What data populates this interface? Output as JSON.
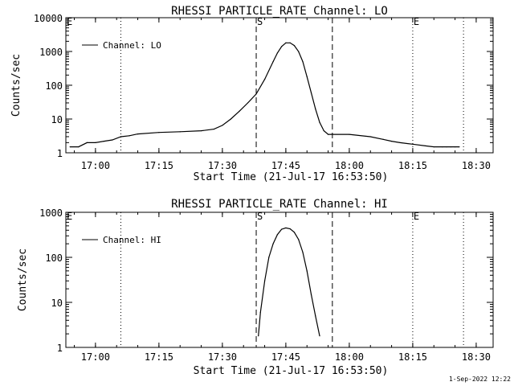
{
  "footer": {
    "date": "1-Sep-2022 12:22"
  },
  "chart_data": [
    {
      "type": "line",
      "title": "RHESSI PARTICLE_RATE Channel: LO",
      "xlabel": "Start Time (21-Jul-17 16:53:50)",
      "ylabel": "Counts/sec",
      "yscale": "log",
      "xlim": [
        "16:53",
        "18:34"
      ],
      "ylim": [
        1,
        10000
      ],
      "x_ticks": [
        "17:00",
        "17:15",
        "17:30",
        "17:45",
        "18:00",
        "18:15",
        "18:30"
      ],
      "y_ticks": [
        "1",
        "10",
        "100",
        "1000",
        "10000"
      ],
      "legend": {
        "position": "top-left",
        "entries": [
          "Channel: LO"
        ]
      },
      "markers": [
        {
          "label": "E",
          "x": "16:53",
          "style": "dotted"
        },
        {
          "label": "",
          "x": "17:06",
          "style": "dotted"
        },
        {
          "label": "S",
          "x": "17:38",
          "style": "dashed"
        },
        {
          "label": "",
          "x": "17:56",
          "style": "dashed"
        },
        {
          "label": "E",
          "x": "18:15",
          "style": "dotted"
        },
        {
          "label": "",
          "x": "18:27",
          "style": "dotted"
        }
      ],
      "series": [
        {
          "name": "Channel: LO",
          "x": [
            "16:54",
            "16:56",
            "16:58",
            "17:00",
            "17:02",
            "17:04",
            "17:06",
            "17:08",
            "17:10",
            "17:15",
            "17:20",
            "17:25",
            "17:28",
            "17:30",
            "17:32",
            "17:34",
            "17:36",
            "17:38",
            "17:40",
            "17:42",
            "17:43",
            "17:44",
            "17:45",
            "17:46",
            "17:47",
            "17:48",
            "17:49",
            "17:50",
            "17:51",
            "17:52",
            "17:53",
            "17:54",
            "17:55",
            "18:00",
            "18:05",
            "18:08",
            "18:10",
            "18:12",
            "18:15",
            "18:18",
            "18:20",
            "18:22",
            "18:23",
            "18:24",
            "18:25",
            "18:26"
          ],
          "y": [
            1.5,
            1.5,
            2.0,
            2.0,
            2.2,
            2.4,
            3.0,
            3.2,
            3.6,
            4.0,
            4.2,
            4.5,
            5.0,
            6.5,
            10,
            17,
            30,
            55,
            150,
            500,
            900,
            1400,
            1800,
            1800,
            1500,
            1000,
            500,
            180,
            60,
            20,
            8,
            4.5,
            3.5,
            3.5,
            3.0,
            2.5,
            2.2,
            2.0,
            1.8,
            1.6,
            1.5,
            1.5,
            1.5,
            1.5,
            1.5,
            1.5
          ]
        }
      ]
    },
    {
      "type": "line",
      "title": "RHESSI PARTICLE_RATE Channel: HI",
      "xlabel": "Start Time (21-Jul-17 16:53:50)",
      "ylabel": "Counts/sec",
      "yscale": "log",
      "xlim": [
        "16:53",
        "18:34"
      ],
      "ylim": [
        1,
        1000
      ],
      "x_ticks": [
        "17:00",
        "17:15",
        "17:30",
        "17:45",
        "18:00",
        "18:15",
        "18:30"
      ],
      "y_ticks": [
        "1",
        "10",
        "100",
        "1000"
      ],
      "legend": {
        "position": "top-left",
        "entries": [
          "Channel: HI"
        ]
      },
      "markers": [
        {
          "label": "E",
          "x": "16:53",
          "style": "dotted"
        },
        {
          "label": "",
          "x": "17:06",
          "style": "dotted"
        },
        {
          "label": "S",
          "x": "17:38",
          "style": "dashed"
        },
        {
          "label": "",
          "x": "17:56",
          "style": "dashed"
        },
        {
          "label": "E",
          "x": "18:15",
          "style": "dotted"
        },
        {
          "label": "",
          "x": "18:27",
          "style": "dotted"
        }
      ],
      "series": [
        {
          "name": "Channel: HI",
          "x": [
            "17:38.5",
            "17:39",
            "17:40",
            "17:41",
            "17:42",
            "17:43",
            "17:44",
            "17:45",
            "17:46",
            "17:47",
            "17:48",
            "17:49",
            "17:50",
            "17:51",
            "17:52",
            "17:53"
          ],
          "y": [
            1.8,
            6,
            30,
            100,
            200,
            320,
            420,
            450,
            430,
            360,
            250,
            130,
            50,
            15,
            5,
            1.8
          ]
        }
      ]
    }
  ]
}
